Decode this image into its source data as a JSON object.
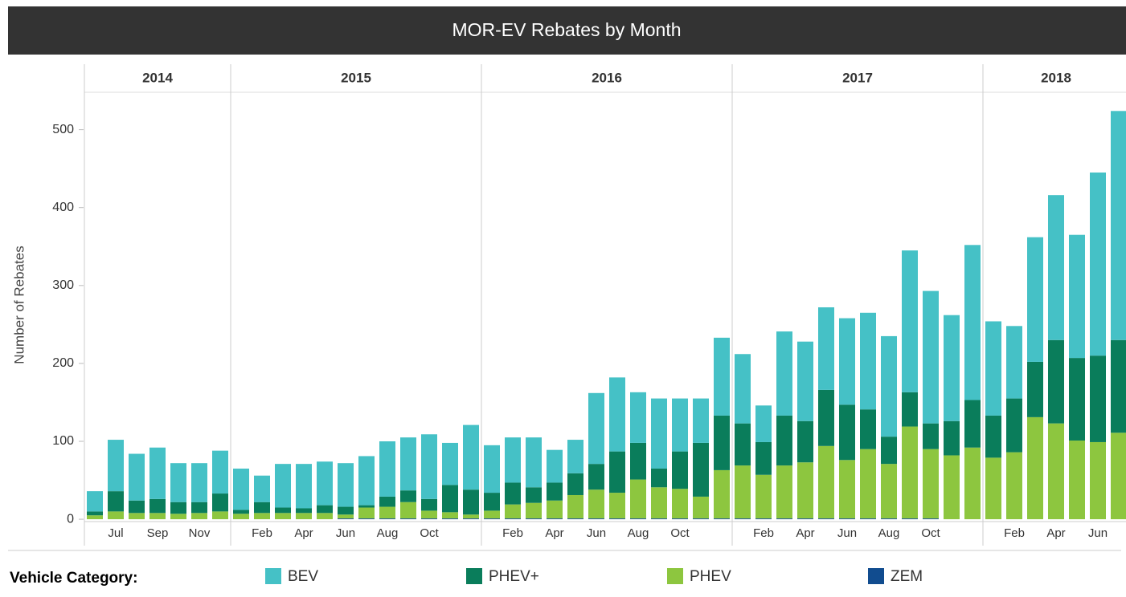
{
  "chart_data": {
    "type": "stacked_bar",
    "title": "MOR-EV Rebates by Month",
    "y_label": "Number of Rebates",
    "legend_title": "Vehicle Category:",
    "groups": [
      {
        "label": "2014",
        "categories": [
          null,
          "Jul",
          null,
          "Sep",
          null,
          "Nov",
          null
        ]
      },
      {
        "label": "2015",
        "categories": [
          null,
          "Feb",
          null,
          "Apr",
          null,
          "Jun",
          null,
          "Aug",
          null,
          "Oct",
          null,
          null
        ]
      },
      {
        "label": "2016",
        "categories": [
          null,
          "Feb",
          null,
          "Apr",
          null,
          "Jun",
          null,
          "Aug",
          null,
          "Oct",
          null,
          null
        ]
      },
      {
        "label": "2017",
        "categories": [
          null,
          "Feb",
          null,
          "Apr",
          null,
          "Jun",
          null,
          "Aug",
          null,
          "Oct",
          null,
          null
        ]
      },
      {
        "label": "2018",
        "categories": [
          null,
          "Feb",
          null,
          "Apr",
          null,
          "Jun",
          null
        ]
      }
    ],
    "series": [
      {
        "name": "BEV",
        "color": "#45c1c6",
        "values": [
          26,
          66,
          60,
          66,
          50,
          50,
          55,
          53,
          34,
          56,
          57,
          56,
          56,
          63,
          71,
          68,
          83,
          54,
          83,
          61,
          58,
          64,
          42,
          43,
          91,
          95,
          65,
          90,
          68,
          57,
          100,
          89,
          47,
          108,
          102,
          106,
          111,
          124,
          129,
          182,
          170,
          136,
          199,
          121,
          93,
          160,
          186,
          158,
          235,
          294
        ]
      },
      {
        "name": "PHEV+",
        "color": "#0a7d5b",
        "values": [
          5,
          26,
          16,
          18,
          15,
          14,
          23,
          5,
          14,
          7,
          6,
          10,
          10,
          3,
          13,
          15,
          15,
          35,
          32,
          23,
          28,
          20,
          23,
          28,
          33,
          53,
          47,
          24,
          48,
          69,
          70,
          54,
          42,
          64,
          53,
          72,
          71,
          51,
          35,
          44,
          33,
          44,
          61,
          54,
          69,
          71,
          107,
          106,
          111,
          119
        ]
      },
      {
        "name": "PHEV",
        "color": "#8dc63f",
        "values": [
          5,
          10,
          8,
          8,
          7,
          8,
          10,
          7,
          8,
          8,
          8,
          8,
          5,
          14,
          15,
          21,
          10,
          8,
          5,
          10,
          18,
          20,
          23,
          30,
          37,
          33,
          50,
          40,
          38,
          28,
          62,
          68,
          56,
          68,
          72,
          93,
          75,
          89,
          70,
          118,
          89,
          82,
          92,
          79,
          86,
          131,
          123,
          101,
          99,
          111
        ]
      },
      {
        "name": "ZEM",
        "color": "#114c8f",
        "values": [
          0,
          0,
          0,
          0,
          0,
          0,
          0,
          0,
          0,
          0,
          0,
          0,
          1,
          1,
          1,
          1,
          1,
          1,
          1,
          1,
          1,
          1,
          1,
          1,
          1,
          1,
          1,
          1,
          1,
          1,
          1,
          1,
          1,
          1,
          1,
          1,
          1,
          1,
          1,
          1,
          1,
          0,
          0,
          0,
          0,
          0,
          0,
          0,
          0,
          0
        ]
      }
    ],
    "ylim": [
      -3,
      548
    ],
    "yticks": [
      0,
      100,
      200,
      300,
      400,
      500
    ]
  }
}
